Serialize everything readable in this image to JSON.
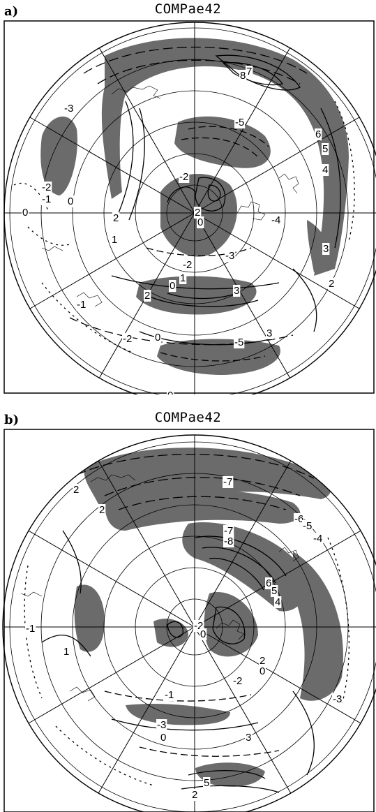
{
  "panels": [
    {
      "id": "a",
      "letter": "a)",
      "title": "COMPae42",
      "contour_labels": [
        "-3",
        "8",
        "7",
        "-5",
        "6",
        "5",
        "4",
        "-2",
        "-1",
        "0",
        "0",
        "2",
        "-2",
        "2",
        "0",
        "1",
        "-4",
        "3",
        "-3",
        "-2",
        "1",
        "0",
        "2",
        "3",
        "-1",
        "-2",
        "0",
        "-5",
        "3",
        "2",
        "0"
      ]
    },
    {
      "id": "b",
      "letter": "b)",
      "title": "COMPae42",
      "contour_labels": [
        "2",
        "-7",
        "2",
        "-6",
        "-5",
        "-4",
        "-7",
        "-8",
        "6",
        "5",
        "4",
        "-1",
        "1",
        "-2",
        "0",
        "2",
        "0",
        "-2",
        "-1",
        "-3",
        "0",
        "3",
        "-3",
        "5",
        "2"
      ]
    }
  ],
  "colors": {
    "shading": "#6b6b6b",
    "lines": "#000000",
    "grid": "#000000",
    "background": "#ffffff"
  }
}
